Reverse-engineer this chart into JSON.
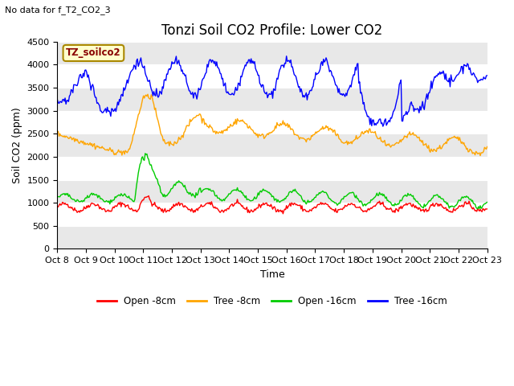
{
  "title": "Tonzi Soil CO2 Profile: Lower CO2",
  "subtitle": "No data for f_T2_CO2_3",
  "ylabel": "Soil CO2 (ppm)",
  "xlabel": "Time",
  "ylim": [
    0,
    4500
  ],
  "yticks": [
    0,
    500,
    1000,
    1500,
    2000,
    2500,
    3000,
    3500,
    4000,
    4500
  ],
  "legend_label": "TZ_soilco2",
  "line_labels": [
    "Open -8cm",
    "Tree -8cm",
    "Open -16cm",
    "Tree -16cm"
  ],
  "line_colors": [
    "#ff0000",
    "#ffa500",
    "#00cc00",
    "#0000ff"
  ],
  "bg_color": "#ffffff",
  "plot_bg_color": "#ffffff",
  "fig_bg_color": "#ffffff",
  "n_points": 500,
  "xticklabels": [
    "Oct 8",
    "Oct 9",
    "Oct 10",
    "Oct 11",
    "Oct 12",
    "Oct 13",
    "Oct 14",
    "Oct 15",
    "Oct 16",
    "Oct 17",
    "Oct 18",
    "Oct 19",
    "Oct 20",
    "Oct 21",
    "Oct 22",
    "Oct 23"
  ],
  "title_fontsize": 12,
  "axis_fontsize": 9,
  "tick_fontsize": 8
}
